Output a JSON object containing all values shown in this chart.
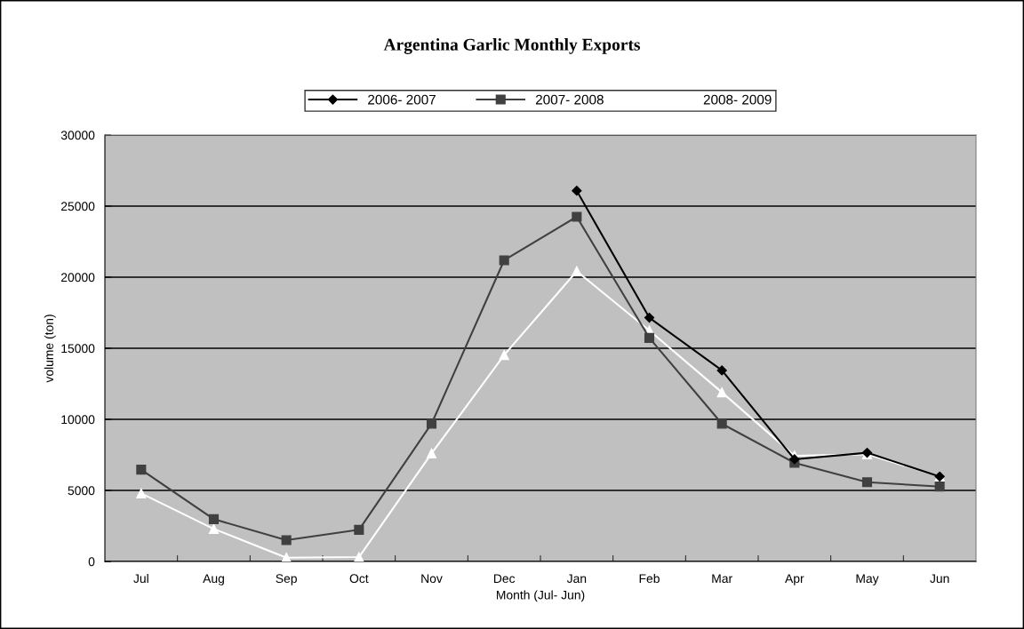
{
  "chart_data": {
    "type": "line",
    "title": "Argentina Garlic Monthly Exports",
    "xlabel": "Month (Jul- Jun)",
    "ylabel": "volume (ton)",
    "categories": [
      "Jul",
      "Aug",
      "Sep",
      "Oct",
      "Nov",
      "Dec",
      "Jan",
      "Feb",
      "Mar",
      "Apr",
      "May",
      "Jun"
    ],
    "series": [
      {
        "name": "2006- 2007",
        "color": "#000000",
        "marker": "diamond",
        "values": [
          null,
          null,
          null,
          null,
          null,
          null,
          26080,
          17150,
          13440,
          7190,
          7650,
          5980
        ]
      },
      {
        "name": "2007- 2008",
        "color": "#404040",
        "marker": "square",
        "values": [
          6460,
          2980,
          1500,
          2230,
          9690,
          21190,
          24250,
          15730,
          9690,
          6940,
          5580,
          5270
        ]
      },
      {
        "name": "2008- 2009",
        "color": "#ffffff",
        "marker": "triangle",
        "values": [
          4790,
          2290,
          270,
          310,
          7600,
          14520,
          20420,
          16250,
          11900,
          7440,
          7540,
          5980
        ]
      }
    ],
    "ylim": [
      0,
      30000
    ],
    "yticks": [
      0,
      5000,
      10000,
      15000,
      20000,
      25000,
      30000
    ],
    "grid": "y",
    "legend": "top"
  }
}
